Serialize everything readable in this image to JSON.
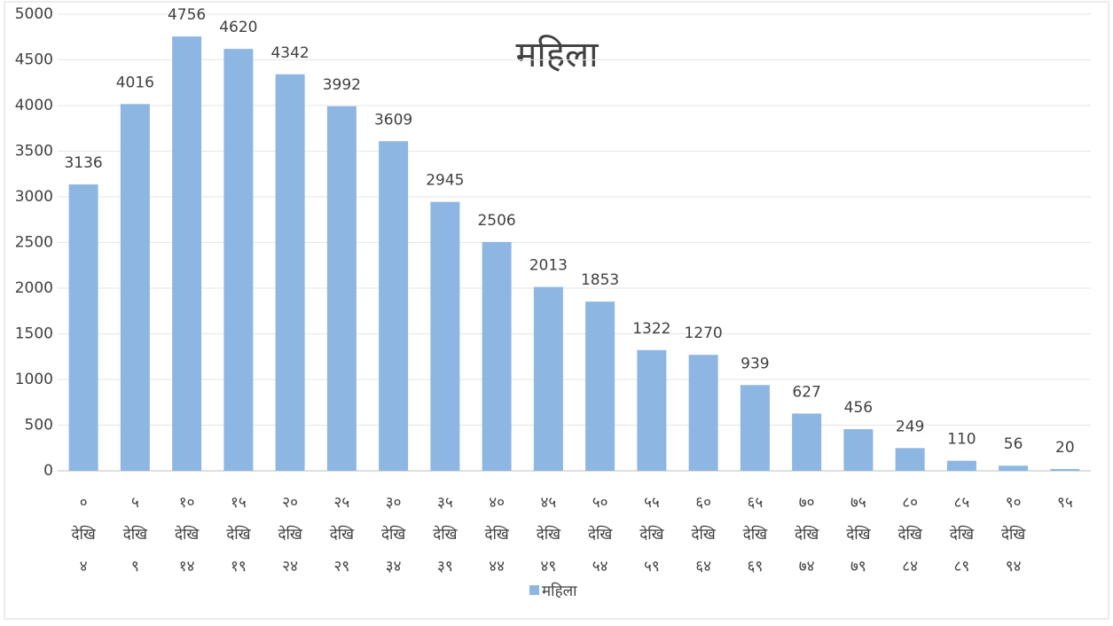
{
  "chart_data": {
    "type": "bar",
    "title": "महिला",
    "categories": [
      [
        "०",
        "देखि",
        "४"
      ],
      [
        "५",
        "देखि",
        "९"
      ],
      [
        "१०",
        "देखि",
        "१४"
      ],
      [
        "१५",
        "देखि",
        "१९"
      ],
      [
        "२०",
        "देखि",
        "२४"
      ],
      [
        "२५",
        "देखि",
        "२९"
      ],
      [
        "३०",
        "देखि",
        "३४"
      ],
      [
        "३५",
        "देखि",
        "३९"
      ],
      [
        "४०",
        "देखि",
        "४४"
      ],
      [
        "४५",
        "देखि",
        "४९"
      ],
      [
        "५०",
        "देखि",
        "५४"
      ],
      [
        "५५",
        "देखि",
        "५९"
      ],
      [
        "६०",
        "देखि",
        "६४"
      ],
      [
        "६५",
        "देखि",
        "६९"
      ],
      [
        "७०",
        "देखि",
        "७४"
      ],
      [
        "७५",
        "देखि",
        "७९"
      ],
      [
        "८०",
        "देखि",
        "८४"
      ],
      [
        "८५",
        "देखि",
        "८९"
      ],
      [
        "९०",
        "देखि",
        "९४"
      ],
      [
        "९५"
      ]
    ],
    "series": [
      {
        "name": "महिला",
        "color": "#8db6e3",
        "values": [
          3136,
          4016,
          4756,
          4620,
          4342,
          3992,
          3609,
          2945,
          2506,
          2013,
          1853,
          1322,
          1270,
          939,
          627,
          456,
          249,
          110,
          56,
          20
        ]
      }
    ],
    "ylim": [
      0,
      5000
    ],
    "yticks": [
      0,
      500,
      1000,
      1500,
      2000,
      2500,
      3000,
      3500,
      4000,
      4500,
      5000
    ],
    "grid": true,
    "legend": "bottom"
  }
}
